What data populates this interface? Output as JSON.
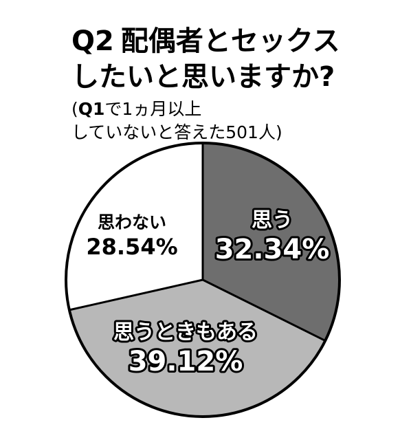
{
  "header": {
    "q_number": "Q2",
    "title_line1": "配偶者とセックス",
    "title_line2": "したいと思いますか?",
    "sub_open": "(",
    "sub_q": "Q1",
    "sub_line1_rest": "で1ヵ月以上",
    "sub_line2": "していないと答えた501人)"
  },
  "chart_data": {
    "type": "pie",
    "slices": [
      {
        "label": "思う",
        "value": 32.34,
        "value_label": "32.34%",
        "color": "#6e6e6e",
        "text_color": "#ffffff",
        "stroke_text": true
      },
      {
        "label": "思うときもある",
        "value": 39.12,
        "value_label": "39.12%",
        "color": "#b8b8b8",
        "text_color": "#ffffff",
        "stroke_text": true
      },
      {
        "label": "思わない",
        "value": 28.54,
        "value_label": "28.54%",
        "color": "#ffffff",
        "text_color": "#000000",
        "stroke_text": false
      }
    ],
    "start": "12 o'clock",
    "direction": "clockwise",
    "slice_outline_color": "#000000"
  }
}
